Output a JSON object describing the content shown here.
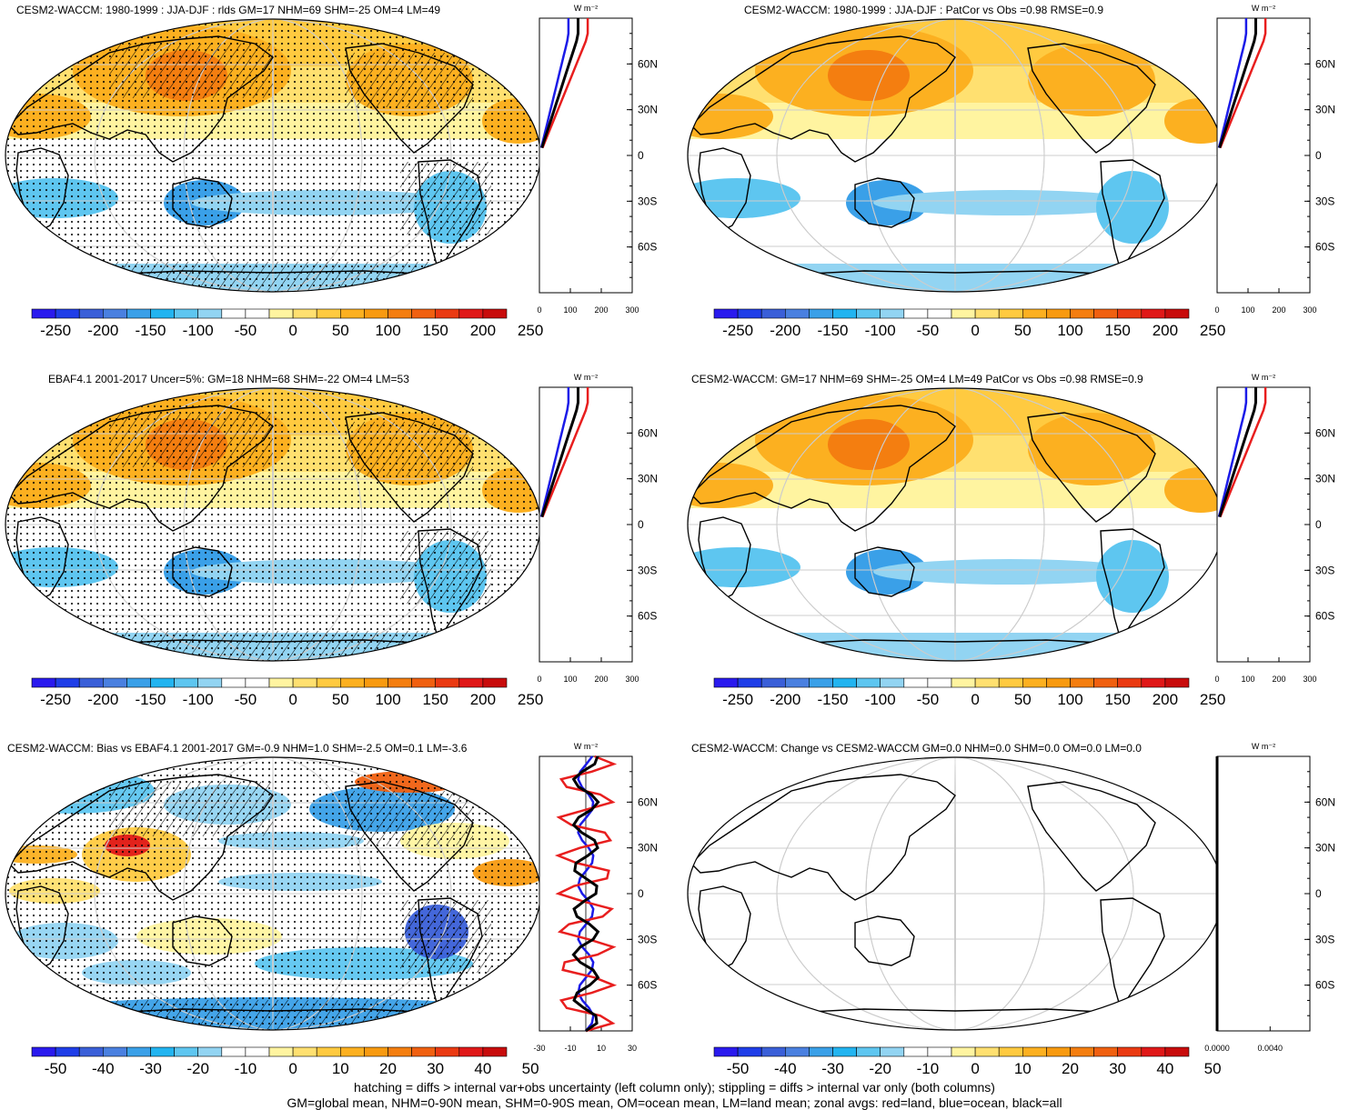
{
  "panels": [
    {
      "title": "CESM2-WACCM: 1980-1999 : JJA-DJF : rlds GM=17 NHM=69 SHM=-25 OM=4 LM=49",
      "colorbar": [
        "-250",
        "-200",
        "-150",
        "-100",
        "-50",
        "0",
        "50",
        "100",
        "150",
        "200",
        "250"
      ],
      "profile": {
        "xticks": [
          "0",
          "100",
          "200",
          "300"
        ],
        "units": "W m⁻²",
        "xrange": [
          0,
          300
        ]
      },
      "overlay": "hatch-stipple"
    },
    {
      "title": "CESM2-WACCM: 1980-1999 : JJA-DJF : PatCor vs Obs =0.98 RMSE=0.9",
      "colorbar": [
        "-250",
        "-200",
        "-150",
        "-100",
        "-50",
        "0",
        "50",
        "100",
        "150",
        "200",
        "250"
      ],
      "profile": {
        "xticks": [
          "0",
          "100",
          "200",
          "300"
        ],
        "units": "W m⁻²",
        "xrange": [
          0,
          300
        ]
      },
      "overlay": "none"
    },
    {
      "title": "EBAF4.1 2001-2017 Uncer=5%: GM=18 NHM=68 SHM=-22 OM=4 LM=53",
      "colorbar": [
        "-250",
        "-200",
        "-150",
        "-100",
        "-50",
        "0",
        "50",
        "100",
        "150",
        "200",
        "250"
      ],
      "profile": {
        "xticks": [
          "0",
          "100",
          "200",
          "300"
        ],
        "units": "W m⁻²",
        "xrange": [
          0,
          300
        ]
      },
      "overlay": "hatch-stipple"
    },
    {
      "title": "CESM2-WACCM: GM=17 NHM=69 SHM=-25 OM=4 LM=49 PatCor vs Obs =0.98 RMSE=0.9",
      "colorbar": [
        "-250",
        "-200",
        "-150",
        "-100",
        "-50",
        "0",
        "50",
        "100",
        "150",
        "200",
        "250"
      ],
      "profile": {
        "xticks": [
          "0",
          "100",
          "200",
          "300"
        ],
        "units": "W m⁻²",
        "xrange": [
          0,
          300
        ]
      },
      "overlay": "none"
    },
    {
      "title": "CESM2-WACCM: Bias vs EBAF4.1 2001-2017 GM=-0.9 NHM=1.0 SHM=-2.5 OM=0.1 LM=-3.6",
      "colorbar": [
        "-50",
        "-40",
        "-30",
        "-20",
        "-10",
        "0",
        "10",
        "20",
        "30",
        "40",
        "50"
      ],
      "profile": {
        "xticks": [
          "-30",
          "-10",
          "10",
          "30"
        ],
        "units": "W m⁻²",
        "xrange": [
          -30,
          30
        ]
      },
      "overlay": "hatch-stipple"
    },
    {
      "title": "CESM2-WACCM: Change vs CESM2-WACCM GM=0.0 NHM=0.0 SHM=0.0 OM=0.0 LM=0.0",
      "colorbar": [
        "-50",
        "-40",
        "-30",
        "-20",
        "-10",
        "0",
        "10",
        "20",
        "30",
        "40",
        "50"
      ],
      "profile": {
        "xticks": [
          "0.0000",
          "0.0040"
        ],
        "units": "W m⁻²",
        "xrange": [
          0,
          0.007
        ]
      },
      "overlay": "empty"
    }
  ],
  "latitude_labels": [
    "60N",
    "30N",
    "0",
    "30S",
    "60S"
  ],
  "colorbar_colors": [
    "#2a1aee",
    "#1f3ee8",
    "#3a5fd8",
    "#4a80e0",
    "#3aa0e8",
    "#22b4f0",
    "#5ec6f0",
    "#92d4f2",
    "#ffffff",
    "#ffffff",
    "#fff4a0",
    "#ffe070",
    "#ffca40",
    "#fcb020",
    "#f89a10",
    "#f47e10",
    "#f06010",
    "#ea3a12",
    "#e01818",
    "#c80c0c"
  ],
  "legend": {
    "land": "#e81e1e",
    "ocean": "#1b1be8",
    "all": "#000000"
  },
  "footer": {
    "line1": "hatching = diffs > internal var+obs uncertainty (left column only); stippling = diffs > internal var only (both columns)",
    "line2": "GM=global mean, NHM=0-90N mean, SHM=0-90S mean, OM=ocean mean, LM=land mean; zonal avgs: red=land, blue=ocean, black=all"
  }
}
